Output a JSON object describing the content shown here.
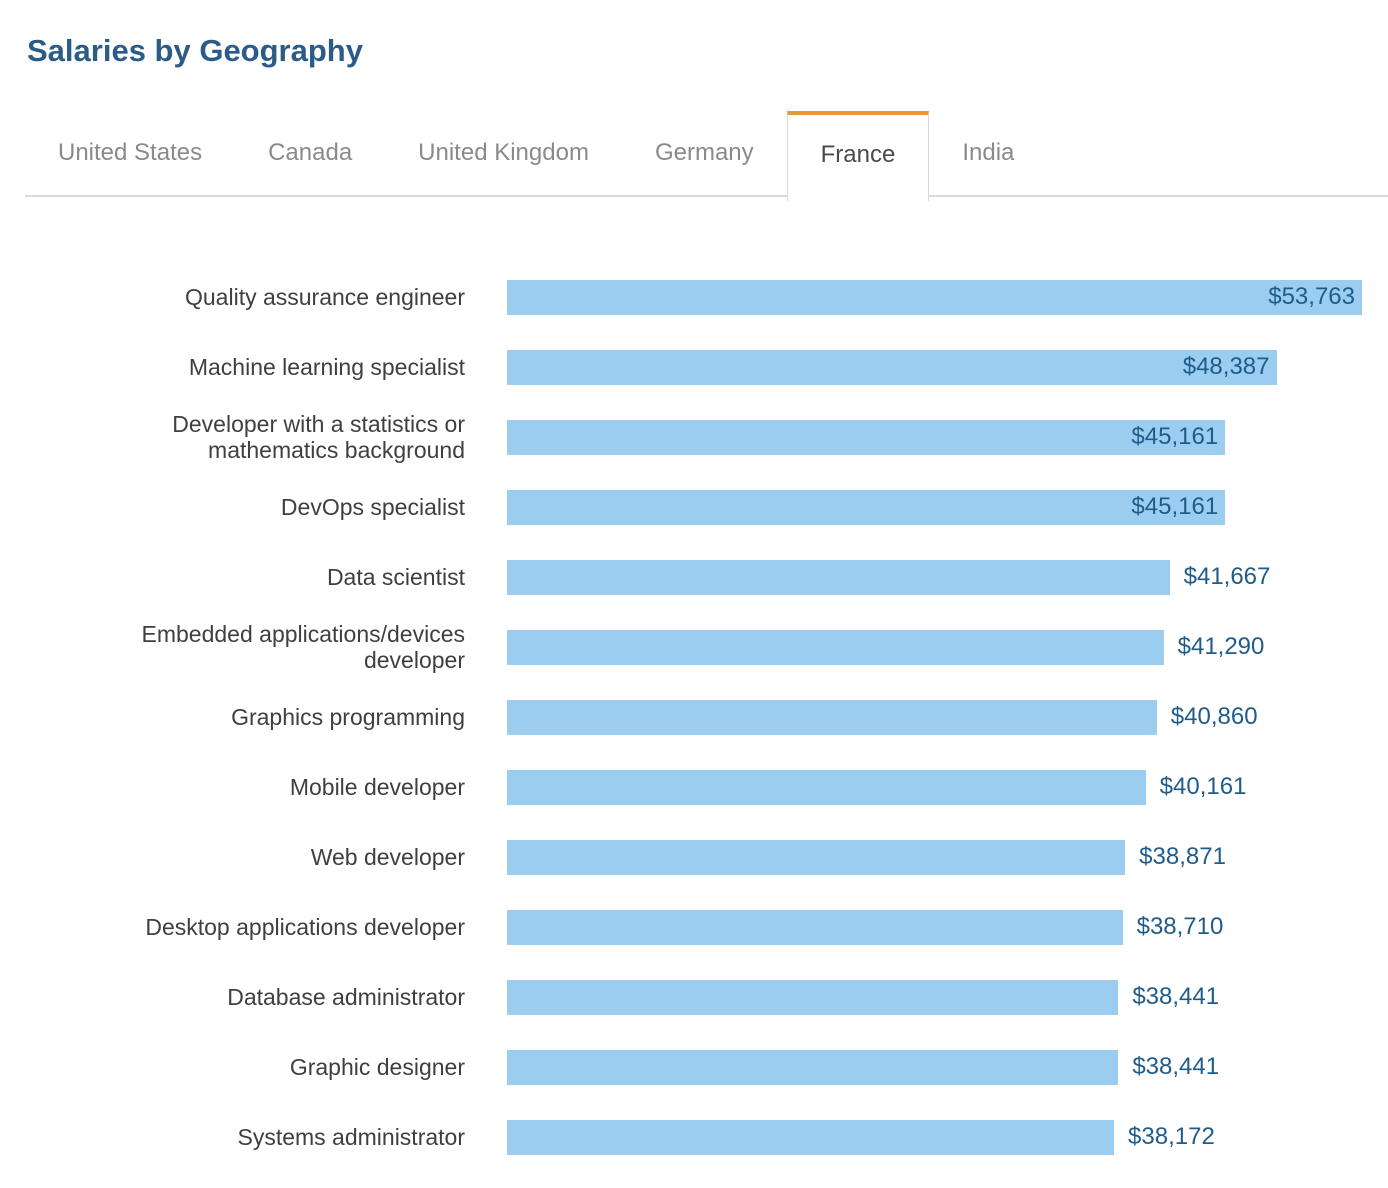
{
  "page": {
    "title": "Salaries by Geography"
  },
  "tabs": {
    "items": [
      {
        "label": "United States",
        "active": false
      },
      {
        "label": "Canada",
        "active": false
      },
      {
        "label": "United Kingdom",
        "active": false
      },
      {
        "label": "Germany",
        "active": false
      },
      {
        "label": "France",
        "active": true
      },
      {
        "label": "India",
        "active": false
      }
    ]
  },
  "chart_data": {
    "type": "bar",
    "orientation": "horizontal",
    "title": "Salaries by Geography",
    "active_tab": "France",
    "categories": [
      "Quality assurance engineer",
      "Machine learning specialist",
      "Developer with a statistics or mathematics background",
      "DevOps specialist",
      "Data scientist",
      "Embedded applications/devices developer",
      "Graphics programming",
      "Mobile developer",
      "Web developer",
      "Desktop applications developer",
      "Database administrator",
      "Graphic designer",
      "Systems administrator"
    ],
    "values": [
      53763,
      48387,
      45161,
      45161,
      41667,
      41290,
      40860,
      40161,
      38871,
      38710,
      38441,
      38441,
      38172
    ],
    "value_labels": [
      "$53,763",
      "$48,387",
      "$45,161",
      "$45,161",
      "$41,667",
      "$41,290",
      "$40,860",
      "$40,161",
      "$38,871",
      "$38,710",
      "$38,441",
      "$38,441",
      "$38,172"
    ],
    "label_placement": [
      "inside",
      "inside",
      "inside",
      "inside",
      "outside",
      "outside",
      "outside",
      "outside",
      "outside",
      "outside",
      "outside",
      "outside",
      "outside"
    ],
    "xlim": [
      0,
      53763
    ],
    "grid": false,
    "axes_visible": false,
    "bar_color": "#9acdf0",
    "value_color": "#1f5c8b"
  },
  "colors": {
    "title": "#2b5c87",
    "tab_inactive_text": "#8a8a8a",
    "tab_active_text": "#4a4a4a",
    "tab_active_top_border": "#e8973a",
    "tab_border": "#d9d9d9",
    "category_text": "#3f3f3f",
    "background": "#ffffff"
  }
}
